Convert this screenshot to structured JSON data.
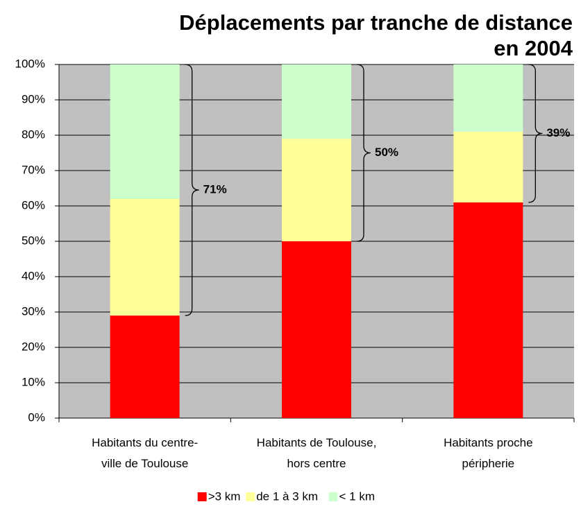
{
  "chart_data": {
    "type": "stacked_bar",
    "title": "Déplacements par tranche de distance\nen 2004",
    "categories": [
      "Habitants du centre-\nville de Toulouse",
      "Habitants de Toulouse,\nhors centre",
      "Habitants proche\npéripherie"
    ],
    "series": [
      {
        "name": ">3 km",
        "color": "#ff0000",
        "values": [
          29,
          50,
          61
        ]
      },
      {
        "name": "de 1 à 3 km",
        "color": "#ffff99",
        "values": [
          33,
          29,
          20
        ]
      },
      {
        "name": "< 1 km",
        "color": "#ccffcc",
        "values": [
          38,
          21,
          19
        ]
      }
    ],
    "annotations": [
      "71%",
      "50%",
      "39%"
    ],
    "ylim": [
      0,
      100
    ],
    "yticks": [
      {
        "value": 0,
        "label": "0%"
      },
      {
        "value": 10,
        "label": "10%"
      },
      {
        "value": 20,
        "label": "20%"
      },
      {
        "value": 30,
        "label": "30%"
      },
      {
        "value": 40,
        "label": "40%"
      },
      {
        "value": 50,
        "label": "50%"
      },
      {
        "value": 60,
        "label": "60%"
      },
      {
        "value": 70,
        "label": "70%"
      },
      {
        "value": 80,
        "label": "80%"
      },
      {
        "value": 90,
        "label": "90%"
      },
      {
        "value": 100,
        "label": "100%"
      }
    ],
    "grid": true,
    "background": "#c0c0c0",
    "legend": "bottom"
  }
}
